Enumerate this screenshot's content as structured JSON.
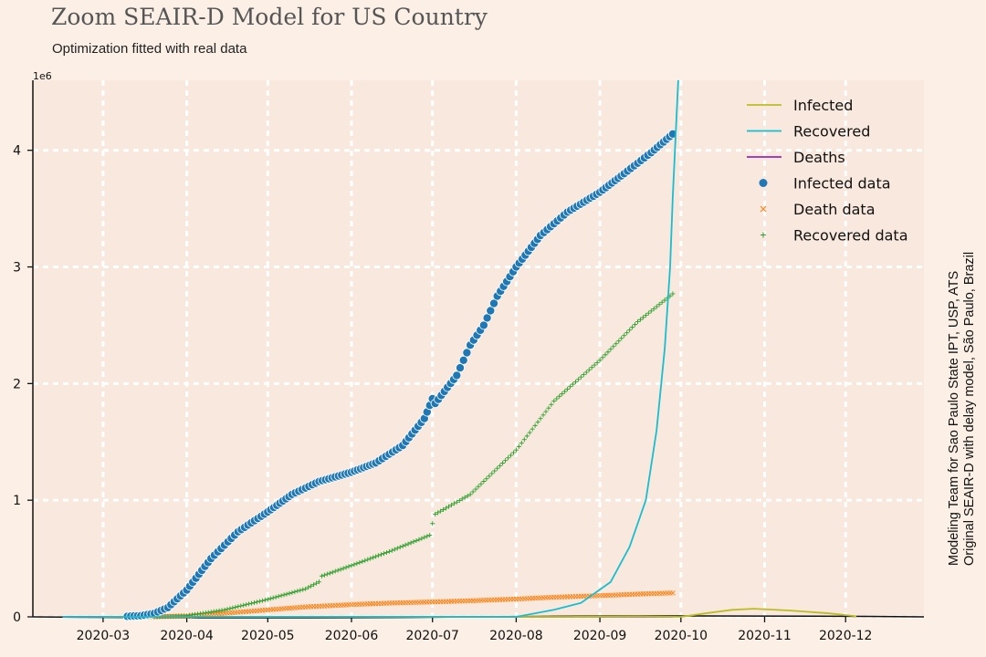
{
  "header": {
    "title": "Zoom SEAIR-D Model for US Country",
    "subtitle": "Optimization fitted with real data"
  },
  "credits": {
    "line1": "Modeling Team for Sao Paulo State IPT, USP, ATS",
    "line2": "Original SEAIR-D with delay model, São Paulo, Brazil"
  },
  "colors": {
    "background": "#fcf0e6",
    "plot_area": "#f9e8dd",
    "grid": "#ffffff",
    "infected_model": "#bcbd22",
    "recovered_model": "#17becf",
    "deaths_model": "#9c27b0",
    "infected_data": "#1f77b4",
    "death_data": "#ff7f0e",
    "recovered_data": "#2ca02c"
  },
  "chart_data": {
    "type": "line",
    "title": "Zoom SEAIR-D Model for US Country",
    "subtitle": "Optimization fitted with real data",
    "xlabel": "",
    "ylabel": "",
    "y_scale_label": "1e6",
    "x_type": "date",
    "xlim": [
      "2020-02-04",
      "2020-12-30"
    ],
    "ylim": [
      0,
      4.6
    ],
    "x_ticks": [
      "2020-03-01",
      "2020-04-01",
      "2020-05-01",
      "2020-06-01",
      "2020-07-01",
      "2020-08-01",
      "2020-09-01",
      "2020-10-01",
      "2020-11-01",
      "2020-12-01"
    ],
    "x_tick_labels": [
      "2020-03",
      "2020-04",
      "2020-05",
      "2020-06",
      "2020-07",
      "2020-08",
      "2020-09",
      "2020-10",
      "2020-11",
      "2020-12"
    ],
    "y_ticks": [
      0,
      1,
      2,
      3,
      4
    ],
    "y_tick_labels": [
      "0",
      "1",
      "2",
      "3",
      "4"
    ],
    "grid": true,
    "legend_position": "top-right",
    "series": [
      {
        "name": "Infected",
        "kind": "line",
        "x": [
          "2020-03-01",
          "2020-08-20",
          "2020-09-15",
          "2020-10-01",
          "2020-10-10",
          "2020-10-20",
          "2020-10-28",
          "2020-11-10",
          "2020-11-25",
          "2020-12-05"
        ],
        "y": [
          0,
          0,
          0.003,
          0.0,
          0.03,
          0.06,
          0.07,
          0.055,
          0.03,
          0.005
        ]
      },
      {
        "name": "Recovered",
        "kind": "line",
        "x": [
          "2020-02-15",
          "2020-08-01",
          "2020-08-15",
          "2020-08-25",
          "2020-09-05",
          "2020-09-12",
          "2020-09-18",
          "2020-09-22",
          "2020-09-25",
          "2020-09-27",
          "2020-09-28",
          "2020-09-29",
          "2020-09-30"
        ],
        "y": [
          0,
          0,
          0.06,
          0.12,
          0.3,
          0.6,
          1.0,
          1.6,
          2.3,
          3.0,
          3.6,
          4.1,
          4.6
        ]
      },
      {
        "name": "Deaths",
        "kind": "line",
        "x": [
          "2020-02-15",
          "2020-09-28"
        ],
        "y": [
          0,
          0
        ]
      },
      {
        "name": "Infected data",
        "kind": "scatter",
        "marker": "circle",
        "x": [
          "2020-03-10",
          "2020-03-15",
          "2020-03-20",
          "2020-03-25",
          "2020-04-01",
          "2020-04-10",
          "2020-04-20",
          "2020-05-01",
          "2020-05-10",
          "2020-05-20",
          "2020-06-01",
          "2020-06-10",
          "2020-06-20",
          "2020-06-28",
          "2020-07-01",
          "2020-07-02",
          "2020-07-10",
          "2020-07-15",
          "2020-07-20",
          "2020-07-25",
          "2020-08-01",
          "2020-08-10",
          "2020-08-20",
          "2020-09-01",
          "2020-09-10",
          "2020-09-20",
          "2020-09-28"
        ],
        "y": [
          0.005,
          0.01,
          0.03,
          0.08,
          0.23,
          0.5,
          0.73,
          0.9,
          1.05,
          1.16,
          1.24,
          1.32,
          1.47,
          1.7,
          1.87,
          1.83,
          2.07,
          2.33,
          2.5,
          2.75,
          3.0,
          3.27,
          3.47,
          3.64,
          3.8,
          3.98,
          4.14
        ]
      },
      {
        "name": "Death data",
        "kind": "scatter",
        "marker": "x",
        "x": [
          "2020-03-15",
          "2020-04-01",
          "2020-04-15",
          "2020-05-01",
          "2020-05-15",
          "2020-06-01",
          "2020-06-15",
          "2020-07-01",
          "2020-07-15",
          "2020-08-01",
          "2020-08-15",
          "2020-09-01",
          "2020-09-15",
          "2020-09-28"
        ],
        "y": [
          0.001,
          0.005,
          0.03,
          0.06,
          0.085,
          0.105,
          0.118,
          0.128,
          0.138,
          0.153,
          0.168,
          0.182,
          0.195,
          0.205
        ]
      },
      {
        "name": "Recovered data",
        "kind": "scatter",
        "marker": "plus",
        "x": [
          "2020-03-20",
          "2020-04-01",
          "2020-04-15",
          "2020-05-01",
          "2020-05-15",
          "2020-05-20",
          "2020-05-21",
          "2020-06-01",
          "2020-06-15",
          "2020-06-30",
          "2020-07-01",
          "2020-07-02",
          "2020-07-15",
          "2020-08-01",
          "2020-08-15",
          "2020-09-01",
          "2020-09-15",
          "2020-09-28"
        ],
        "y": [
          0.0,
          0.01,
          0.06,
          0.15,
          0.24,
          0.3,
          0.35,
          0.44,
          0.56,
          0.7,
          0.8,
          0.88,
          1.05,
          1.43,
          1.85,
          2.2,
          2.53,
          2.77
        ]
      }
    ]
  }
}
